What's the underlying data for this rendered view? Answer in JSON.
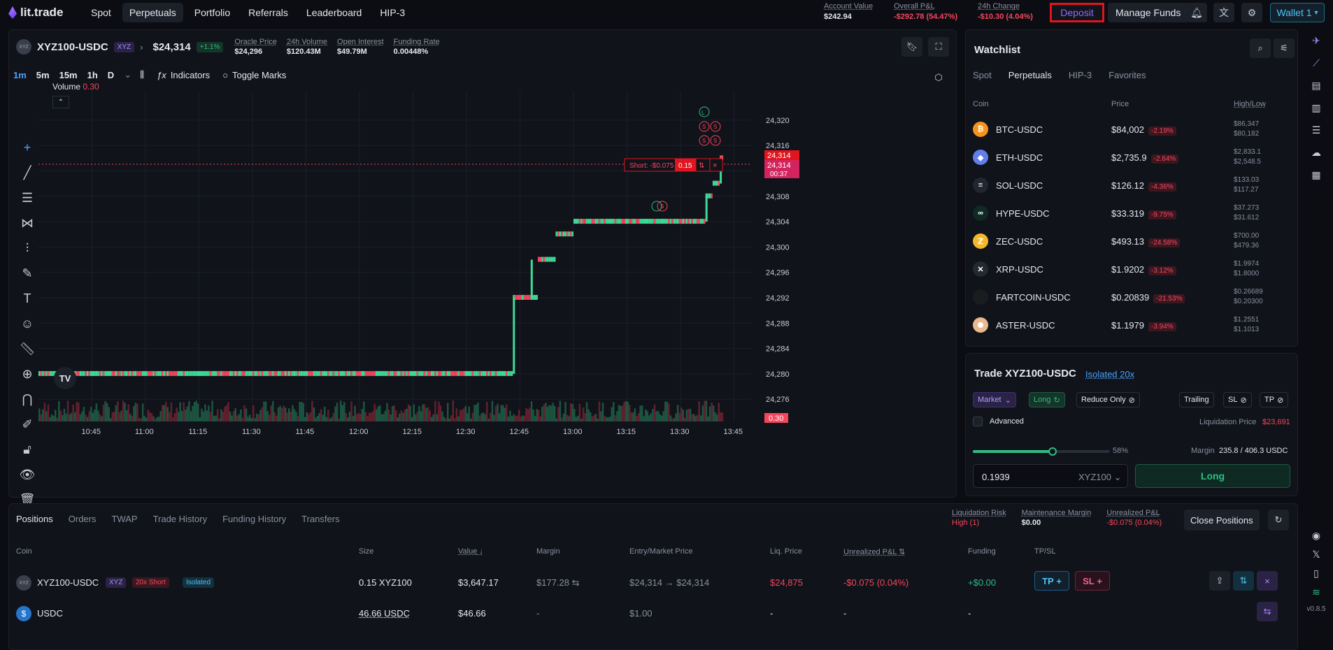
{
  "header": {
    "logo": "lit.trade",
    "nav": [
      "Spot",
      "Perpetuals",
      "Portfolio",
      "Referrals",
      "Leaderboard",
      "HIP-3"
    ],
    "account_value_label": "Account Value",
    "account_value": "$242.94",
    "overall_pnl_label": "Overall P&L",
    "overall_pnl": "-$292.78 (54.47%)",
    "change_label": "24h Change",
    "change": "-$10.30 (4.04%)",
    "deposit": "Deposit",
    "manage_funds": "Manage Funds",
    "wallet": "Wallet 1"
  },
  "market": {
    "symbol": "XYZ100-USDC",
    "tag": "XYZ",
    "price": "$24,314",
    "change": "+1.1%",
    "oracle_label": "Oracle Price",
    "oracle": "$24,296",
    "volume_label": "24h Volume",
    "volume": "$120.43M",
    "oi_label": "Open Interest",
    "oi": "$49.79M",
    "funding_label": "Funding Rate",
    "funding": "0.00448%"
  },
  "toolbar": {
    "timeframes": [
      "1m",
      "5m",
      "15m",
      "1h",
      "D"
    ],
    "indicators": "Indicators",
    "toggle_marks": "Toggle Marks",
    "volume_label": "Volume",
    "volume_value": "0.30"
  },
  "chart_data": {
    "type": "candlestick",
    "x_ticks": [
      "10:45",
      "11:00",
      "11:15",
      "11:30",
      "11:45",
      "12:00",
      "12:15",
      "12:30",
      "12:45",
      "13:00",
      "13:15",
      "13:30",
      "13:45"
    ],
    "y_ticks": [
      24320,
      24316,
      24312,
      24308,
      24304,
      24300,
      24296,
      24292,
      24288,
      24284,
      24280,
      24276
    ],
    "ylim": [
      24272.5,
      24324.5
    ],
    "last_price": "24,314",
    "last_price_2": "24,314",
    "countdown": "00:37",
    "volume_last": "0.30",
    "position_line_label": "Short: -$0.075",
    "position_line_size": "0.15",
    "segments": [
      {
        "from": "10:30",
        "to": "12:43",
        "price": 24280
      },
      {
        "from": "12:43",
        "to": "12:50",
        "price": 24292
      },
      {
        "from": "12:50",
        "to": "12:55",
        "price": 24298
      },
      {
        "from": "12:55",
        "to": "13:00",
        "price": 24302
      },
      {
        "from": "13:00",
        "to": "13:37",
        "price": 24304
      },
      {
        "from": "13:37",
        "to": "13:39",
        "price": 24308
      },
      {
        "from": "13:39",
        "to": "13:41",
        "price": 24310
      },
      {
        "from": "13:41",
        "to": "13:42",
        "price": 24314
      }
    ]
  },
  "watchlist": {
    "title": "Watchlist",
    "tabs": [
      "Spot",
      "Perpetuals",
      "HIP-3",
      "Favorites"
    ],
    "col_coin": "Coin",
    "col_price": "Price",
    "col_hl": "High/Low",
    "rows": [
      {
        "name": "BTC-USDC",
        "price": "$84,002",
        "chg": "-2.19%",
        "high": "$86,347",
        "low": "$80,182",
        "color": "#f7931a",
        "glyph": "₿"
      },
      {
        "name": "ETH-USDC",
        "price": "$2,735.9",
        "chg": "-2.64%",
        "high": "$2,833.1",
        "low": "$2,548.5",
        "color": "#627eea",
        "glyph": "◆"
      },
      {
        "name": "SOL-USDC",
        "price": "$126.12",
        "chg": "-4.36%",
        "high": "$133.03",
        "low": "$117.27",
        "color": "#222630",
        "glyph": "≡"
      },
      {
        "name": "HYPE-USDC",
        "price": "$33.319",
        "chg": "-9.75%",
        "high": "$37.273",
        "low": "$31.612",
        "color": "#0f2a25",
        "glyph": "∞"
      },
      {
        "name": "ZEC-USDC",
        "price": "$493.13",
        "chg": "-24.58%",
        "high": "$700.00",
        "low": "$479.36",
        "color": "#f4b728",
        "glyph": "ℤ"
      },
      {
        "name": "XRP-USDC",
        "price": "$1.9202",
        "chg": "-3.12%",
        "high": "$1.9974",
        "low": "$1.8000",
        "color": "#23292f",
        "glyph": "✕"
      },
      {
        "name": "FARTCOIN-USDC",
        "price": "$0.20839",
        "chg": "-21.53%",
        "high": "$0.26689",
        "low": "$0.20300",
        "color": "#1a1c20",
        "glyph": ""
      },
      {
        "name": "ASTER-USDC",
        "price": "$1.1979",
        "chg": "-3.94%",
        "high": "$1.2551",
        "low": "$1.1013",
        "color": "#e9b98f",
        "glyph": "✺"
      }
    ]
  },
  "trade": {
    "title": "Trade XYZ100-USDC",
    "margin_mode": "Isolated 20x",
    "order_type": "Market",
    "side": "Long",
    "reduce_only": "Reduce Only",
    "trailing": "Trailing",
    "sl": "SL",
    "tp": "TP",
    "advanced": "Advanced",
    "liq_label": "Liquidation Price",
    "liq_value": "$23,691",
    "slider_pct": "58%",
    "slider_value": 0.58,
    "margin_label": "Margin",
    "margin_value": "235.8 / 406.3 USDC",
    "size": "0.1939",
    "size_unit": "XYZ100",
    "submit": "Long"
  },
  "positions": {
    "tabs": [
      "Positions",
      "Orders",
      "TWAP",
      "Trade History",
      "Funding History",
      "Transfers"
    ],
    "liq_risk_label": "Liquidation Risk",
    "liq_risk": "High (1)",
    "maint_label": "Maintenance Margin",
    "maint": "$0.00",
    "upnl_label": "Unrealized P&L",
    "upnl": "-$0.075 (0.04%)",
    "close_all": "Close Positions",
    "headers": [
      "Coin",
      "Size",
      "Value",
      "Margin",
      "Entry/Market Price",
      "Liq. Price",
      "Unrealized P&L",
      "Funding",
      "TP/SL"
    ],
    "row1": {
      "coin": "XYZ100-USDC",
      "tag": "XYZ",
      "side": "20x Short",
      "mode": "Isolated",
      "size": "0.15 XYZ100",
      "value": "$3,647.17",
      "margin": "$177.28",
      "entry": "$24,314 → $24,314",
      "liq": "$24,875",
      "upnl": "-$0.075 (0.04%)",
      "funding": "+$0.00",
      "tp": "TP",
      "sl": "SL"
    },
    "row2": {
      "coin": "USDC",
      "size": "46.66 USDC",
      "value": "$46.66",
      "margin": "-",
      "entry": "$1.00",
      "liq": "-",
      "upnl": "-",
      "funding": "-"
    }
  },
  "footer": {
    "version": "v0.8.5"
  }
}
